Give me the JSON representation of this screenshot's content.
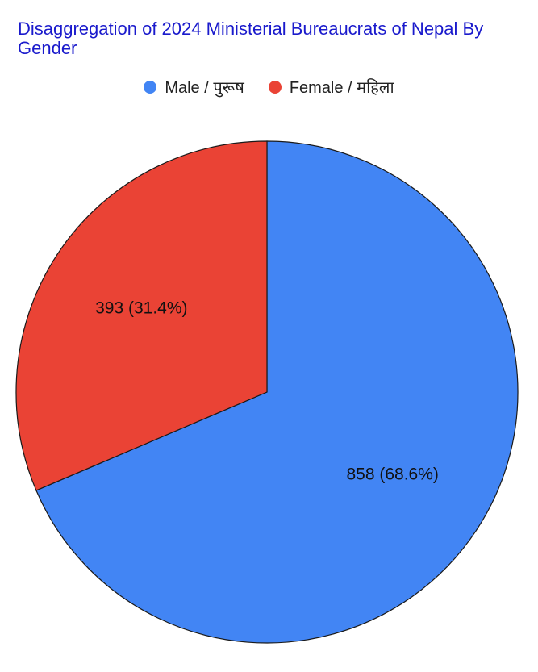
{
  "chart_data": {
    "type": "pie",
    "title": "Disaggregation of 2024 Ministerial Bureaucrats of Nepal By Gender",
    "legend_position": "top",
    "series": [
      {
        "name": "Male / पुरूष",
        "value": 858,
        "percent": 68.6,
        "label": "858 (68.6%)",
        "color": "#4285f4"
      },
      {
        "name": "Female / महिला",
        "value": 393,
        "percent": 31.4,
        "label": "393 (31.4%)",
        "color": "#ea4335"
      }
    ]
  }
}
